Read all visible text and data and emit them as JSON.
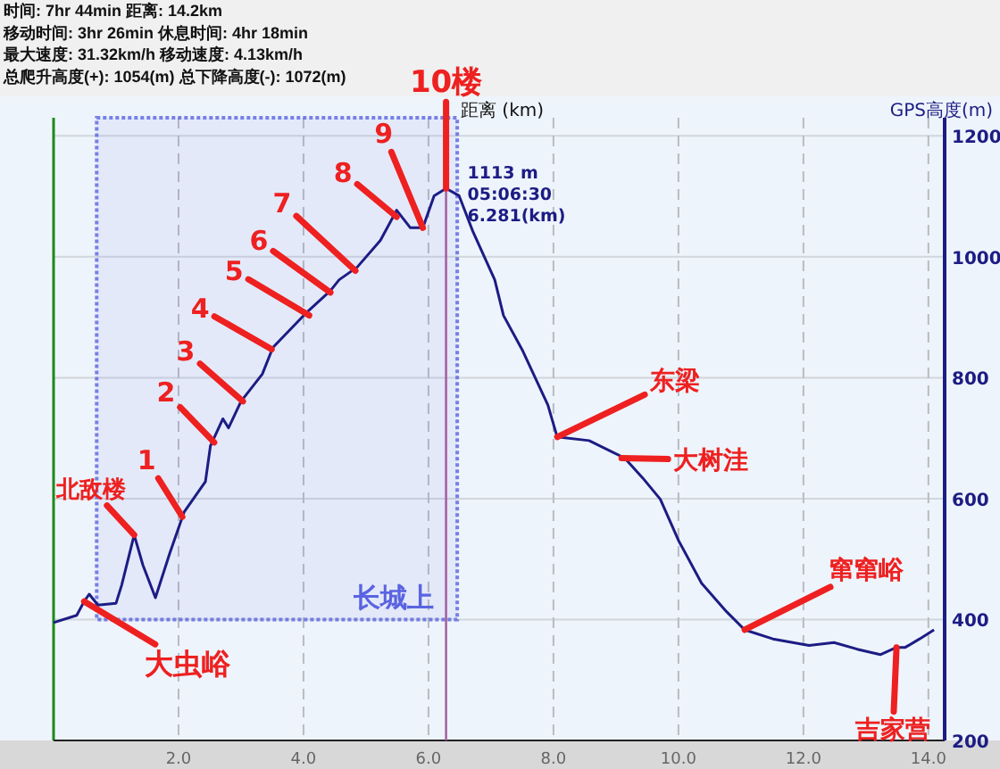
{
  "chart_data": {
    "type": "line",
    "xlabel": "距离 (km)",
    "ylabel": "GPS高度(m)",
    "series": [
      {
        "color": "#1c1c84",
        "x": [
          0,
          0.37,
          0.49,
          0.57,
          0.71,
          1.0,
          1.09,
          1.29,
          1.43,
          1.63,
          1.86,
          2.09,
          2.43,
          2.51,
          2.71,
          2.8,
          3.0,
          3.34,
          3.51,
          4.06,
          4.43,
          4.57,
          4.86,
          5.23,
          5.49,
          5.71,
          5.91,
          6.09,
          6.281,
          6.49,
          6.71,
          7.06,
          7.2,
          7.51,
          7.91,
          8.06,
          8.57,
          9.14,
          9.43,
          9.71,
          10.0,
          10.37,
          10.77,
          11.06,
          11.51,
          12.09,
          12.49,
          12.86,
          13.23,
          13.49,
          13.63,
          13.86,
          14.09
        ],
        "values": [
          395,
          407,
          430,
          442,
          424,
          427,
          457,
          540,
          490,
          436,
          510,
          578,
          628,
          687,
          732,
          717,
          761,
          806,
          850,
          909,
          944,
          962,
          983,
          1027,
          1077,
          1048,
          1048,
          1101,
          1113,
          1101,
          1042,
          962,
          903,
          844,
          755,
          702,
          696,
          667,
          634,
          599,
          531,
          460,
          413,
          383,
          368,
          357,
          362,
          351,
          342,
          354,
          354,
          368,
          383
        ]
      }
    ],
    "xlim": [
      0,
      14.26
    ],
    "ylim": [
      200,
      1230
    ],
    "xticks": [
      {
        "value": 2,
        "label": "2.0"
      },
      {
        "value": 4,
        "label": "4.0"
      },
      {
        "value": 6,
        "label": "6.0"
      },
      {
        "value": 8,
        "label": "8.0"
      },
      {
        "value": 10,
        "label": "10.0"
      },
      {
        "value": 12,
        "label": "12.0"
      },
      {
        "value": 14,
        "label": "14.0"
      }
    ],
    "yticks": [
      200,
      400,
      600,
      800,
      1000,
      1200
    ],
    "grid": true,
    "ref_lines": [
      {
        "axis": "x",
        "value": 6.281,
        "label": "1113 m\n05:06:30\n6.281(km)",
        "color": "#a05a9c"
      }
    ],
    "bands": [
      {
        "axis": "x",
        "from": 0.69,
        "to": 6.46,
        "label": "长城上",
        "color": "#5a64e0"
      }
    ],
    "annotations": [
      "时间: 7hr 44min  距离: 14.2km",
      "移动时间: 3hr 26min  休息时间: 4hr 18min",
      "最大速度: 31.32km/h  移动速度: 4.13km/h",
      "总爬升高度(+): 1054(m)  总下降高度(-): 1072(m)",
      {
        "text": "大虫峪",
        "x": 0.49,
        "y": 430
      },
      {
        "text": "北敌楼",
        "x": 1.29,
        "y": 540
      },
      {
        "text": "1",
        "x": 2.06,
        "y": 570
      },
      {
        "text": "2",
        "x": 2.57,
        "y": 693
      },
      {
        "text": "3",
        "x": 3.03,
        "y": 761
      },
      {
        "text": "4",
        "x": 3.49,
        "y": 847
      },
      {
        "text": "5",
        "x": 4.09,
        "y": 903
      },
      {
        "text": "6",
        "x": 4.43,
        "y": 941
      },
      {
        "text": "7",
        "x": 4.83,
        "y": 977
      },
      {
        "text": "8",
        "x": 5.49,
        "y": 1066
      },
      {
        "text": "9",
        "x": 5.91,
        "y": 1048
      },
      {
        "text": "10楼",
        "x": 6.281,
        "y": 1113
      },
      {
        "text": "东梁",
        "x": 8.06,
        "y": 702
      },
      {
        "text": "大树洼",
        "x": 9.09,
        "y": 667
      },
      {
        "text": "窜窜峪",
        "x": 11.06,
        "y": 383
      },
      {
        "text": "吉家营",
        "x": 13.49,
        "y": 354
      }
    ]
  }
}
